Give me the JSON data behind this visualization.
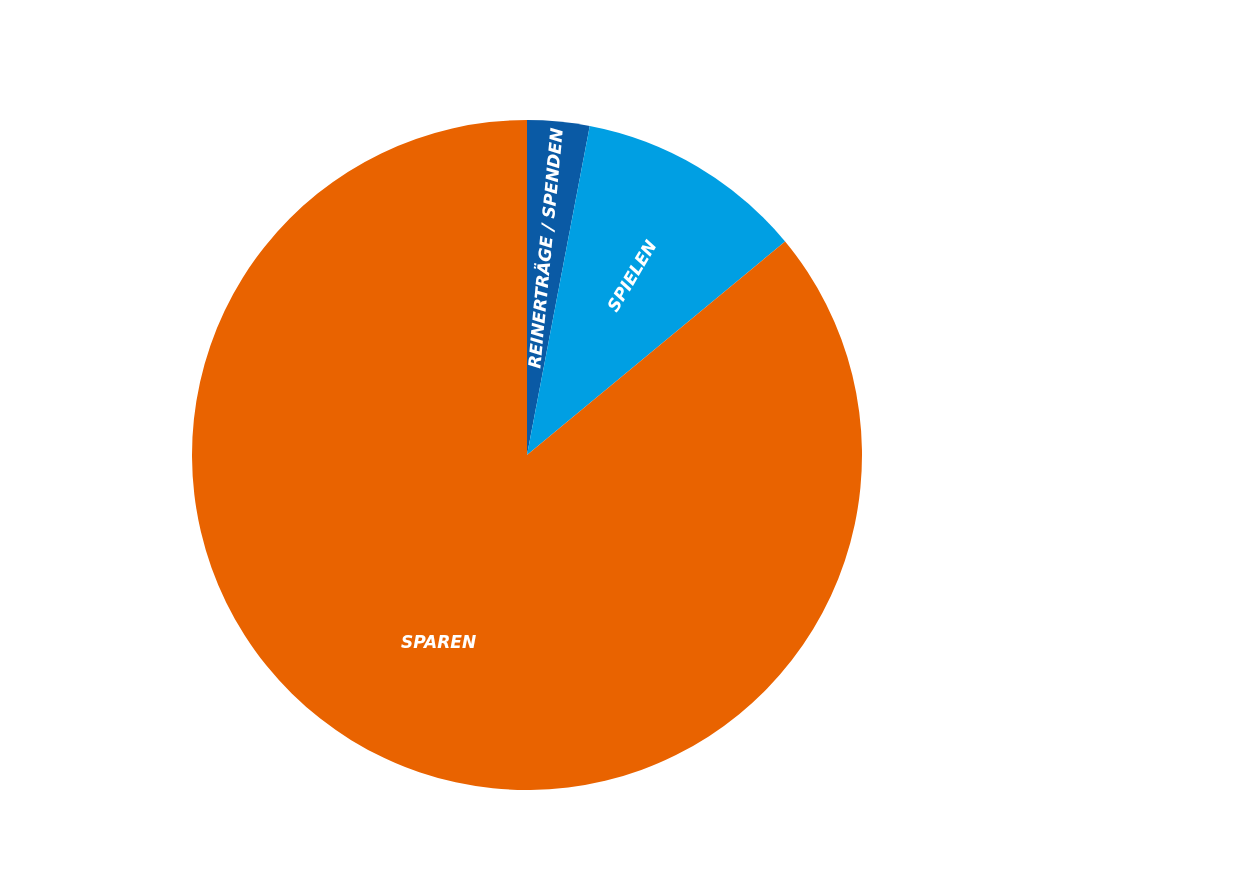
{
  "chart_data": {
    "type": "pie",
    "categories": [
      "REINERTRÄGE / SPENDEN",
      "SPIELEN",
      "SPAREN"
    ],
    "values": [
      3,
      11,
      86
    ],
    "colors": [
      "#0a5aa5",
      "#009fe3",
      "#e96300"
    ],
    "legend": false
  }
}
